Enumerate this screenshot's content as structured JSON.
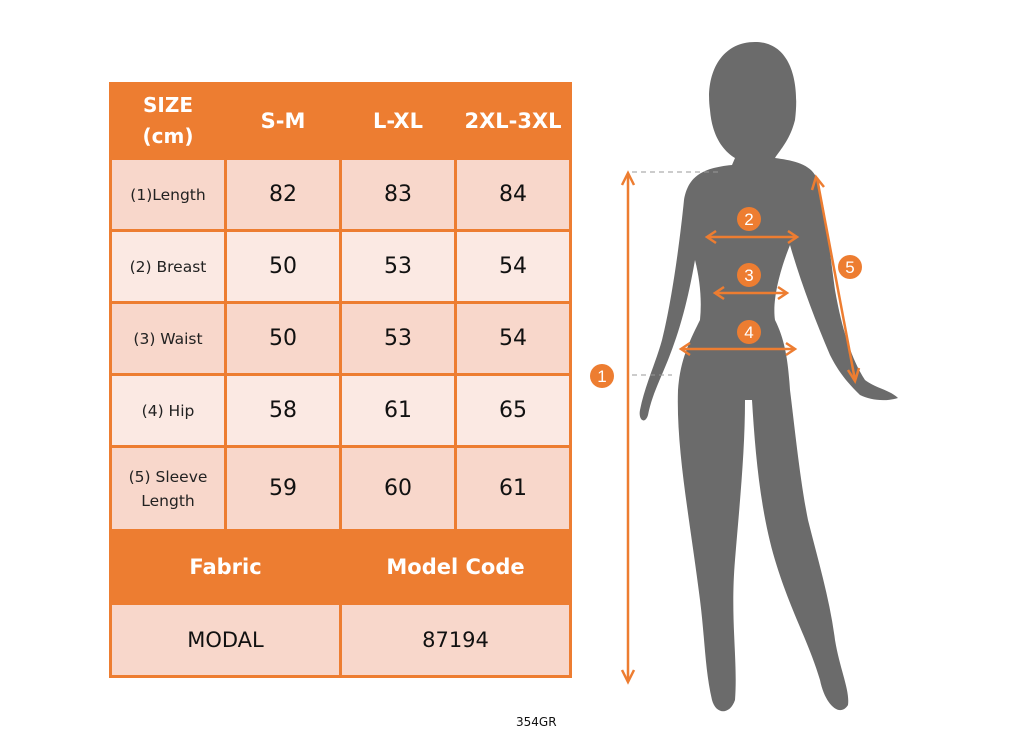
{
  "size_table": {
    "header": {
      "size_label_line1": "SIZE",
      "size_label_line2": "(cm)",
      "sizes": [
        "S-M",
        "L-XL",
        "2XL-3XL"
      ]
    },
    "rows": [
      {
        "label": "(1)Length",
        "values": [
          "82",
          "83",
          "84"
        ]
      },
      {
        "label": "(2) Breast",
        "values": [
          "50",
          "53",
          "54"
        ]
      },
      {
        "label": "(3) Waist",
        "values": [
          "50",
          "53",
          "54"
        ]
      },
      {
        "label": "(4) Hip",
        "values": [
          "58",
          "61",
          "65"
        ]
      },
      {
        "label_line1": "(5) Sleeve",
        "label_line2": "Length",
        "values": [
          "59",
          "60",
          "61"
        ]
      }
    ],
    "footer": {
      "fabric_label": "Fabric",
      "model_code_label": "Model Code",
      "fabric_value": "MODAL",
      "model_code_value": "87194"
    }
  },
  "figure": {
    "markers": [
      "1",
      "2",
      "3",
      "4",
      "5"
    ],
    "accent_color": "#ed7d31",
    "silhouette_color": "#6b6b6b"
  },
  "product_code": "354GR"
}
